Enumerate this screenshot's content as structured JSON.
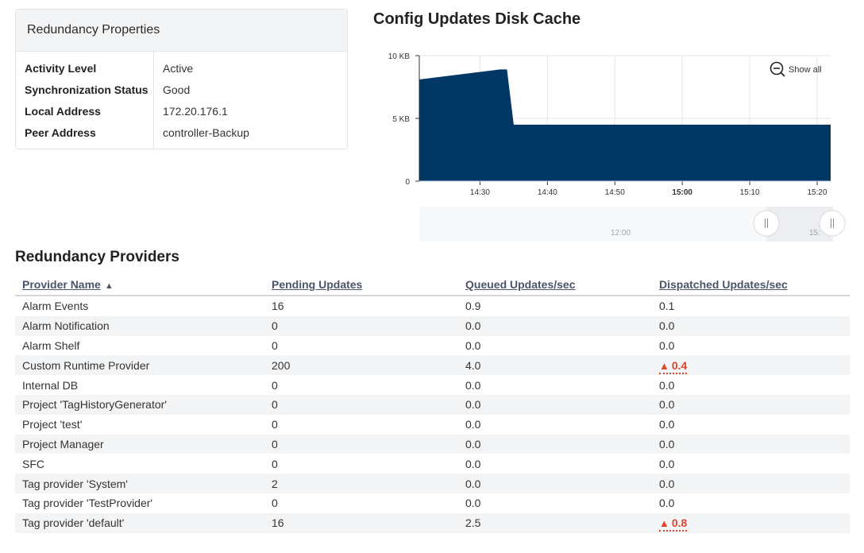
{
  "properties": {
    "title": "Redundancy Properties",
    "rows": [
      {
        "key": "Activity Level",
        "value": "Active"
      },
      {
        "key": "Synchronization Status",
        "value": "Good"
      },
      {
        "key": "Local Address",
        "value": "172.20.176.1"
      },
      {
        "key": "Peer Address",
        "value": "controller-Backup"
      }
    ]
  },
  "chart": {
    "title": "Config Updates Disk Cache",
    "show_all_label": "Show all",
    "navigator_labels": [
      "12:00",
      "15:"
    ]
  },
  "chart_data": {
    "type": "area",
    "title": "Config Updates Disk Cache",
    "xlabel": "",
    "ylabel": "",
    "y_unit": "KB",
    "ylim": [
      0,
      10
    ],
    "yticks": [
      0,
      5,
      10
    ],
    "ytick_labels": [
      "0",
      "5 KB",
      "10 KB"
    ],
    "xlim": [
      "14:21",
      "15:22"
    ],
    "xticks": [
      "14:30",
      "14:40",
      "14:50",
      "15:00",
      "15:10",
      "15:20"
    ],
    "bold_xtick": "15:00",
    "grid": true,
    "color": "#003764",
    "series": [
      {
        "x": [
          "14:21",
          "14:33",
          "14:34",
          "14:35",
          "15:22"
        ],
        "values": [
          8.1,
          8.9,
          8.9,
          4.5,
          4.5
        ]
      }
    ]
  },
  "providers": {
    "title": "Redundancy Providers",
    "columns": [
      "Provider Name",
      "Pending Updates",
      "Queued Updates/sec",
      "Dispatched Updates/sec"
    ],
    "rows": [
      {
        "name": "Alarm Events",
        "pending": "16",
        "queued": "0.9",
        "dispatched": "0.1",
        "warn": false
      },
      {
        "name": "Alarm Notification",
        "pending": "0",
        "queued": "0.0",
        "dispatched": "0.0",
        "warn": false
      },
      {
        "name": "Alarm Shelf",
        "pending": "0",
        "queued": "0.0",
        "dispatched": "0.0",
        "warn": false
      },
      {
        "name": "Custom Runtime Provider",
        "pending": "200",
        "queued": "4.0",
        "dispatched": "0.4",
        "warn": true
      },
      {
        "name": "Internal DB",
        "pending": "0",
        "queued": "0.0",
        "dispatched": "0.0",
        "warn": false
      },
      {
        "name": "Project 'TagHistoryGenerator'",
        "pending": "0",
        "queued": "0.0",
        "dispatched": "0.0",
        "warn": false
      },
      {
        "name": "Project 'test'",
        "pending": "0",
        "queued": "0.0",
        "dispatched": "0.0",
        "warn": false
      },
      {
        "name": "Project Manager",
        "pending": "0",
        "queued": "0.0",
        "dispatched": "0.0",
        "warn": false
      },
      {
        "name": "SFC",
        "pending": "0",
        "queued": "0.0",
        "dispatched": "0.0",
        "warn": false
      },
      {
        "name": "Tag provider 'System'",
        "pending": "2",
        "queued": "0.0",
        "dispatched": "0.0",
        "warn": false
      },
      {
        "name": "Tag provider 'TestProvider'",
        "pending": "0",
        "queued": "0.0",
        "dispatched": "0.0",
        "warn": false
      },
      {
        "name": "Tag provider 'default'",
        "pending": "16",
        "queued": "2.5",
        "dispatched": "0.8",
        "warn": true
      }
    ]
  }
}
